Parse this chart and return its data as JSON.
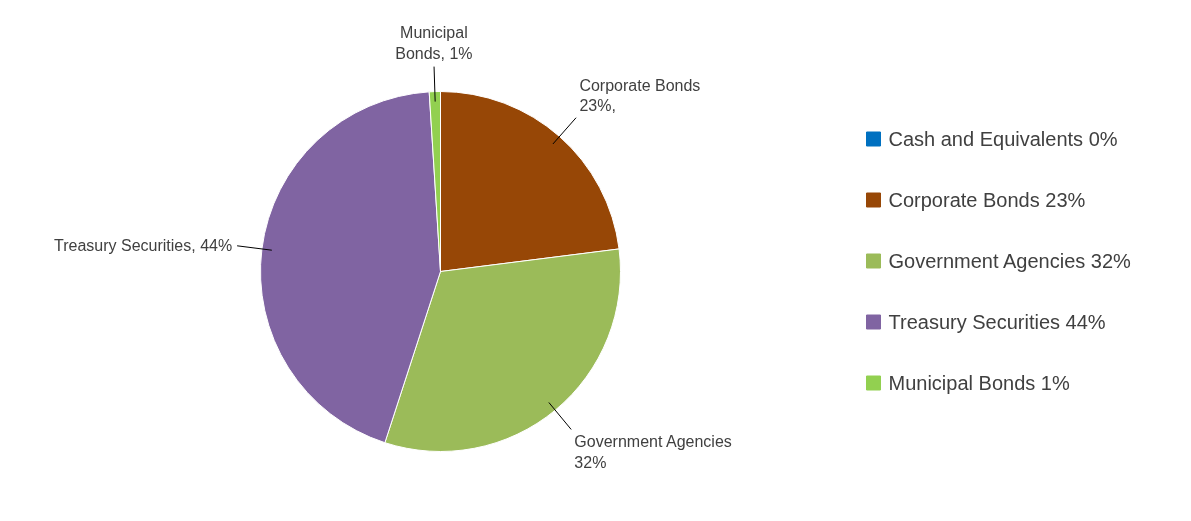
{
  "chart_data": {
    "type": "pie",
    "categories": [
      "Cash and Equivalents 0%",
      "Corporate Bonds 23%",
      "Government Agencies 32%",
      "Treasury Securities 44%",
      "Municipal Bonds 1%"
    ],
    "values": [
      0,
      23,
      32,
      44,
      1
    ],
    "colors": [
      "#0070c0",
      "#974706",
      "#9bbb59",
      "#8064a2",
      "#92d050"
    ],
    "value_labels": [
      null,
      "Corporate Bonds\n23%,",
      "Government Agencies\n32%",
      "Treasury Securities, 44%",
      "Municipal\nBonds, 1%"
    ],
    "legend": "right"
  }
}
